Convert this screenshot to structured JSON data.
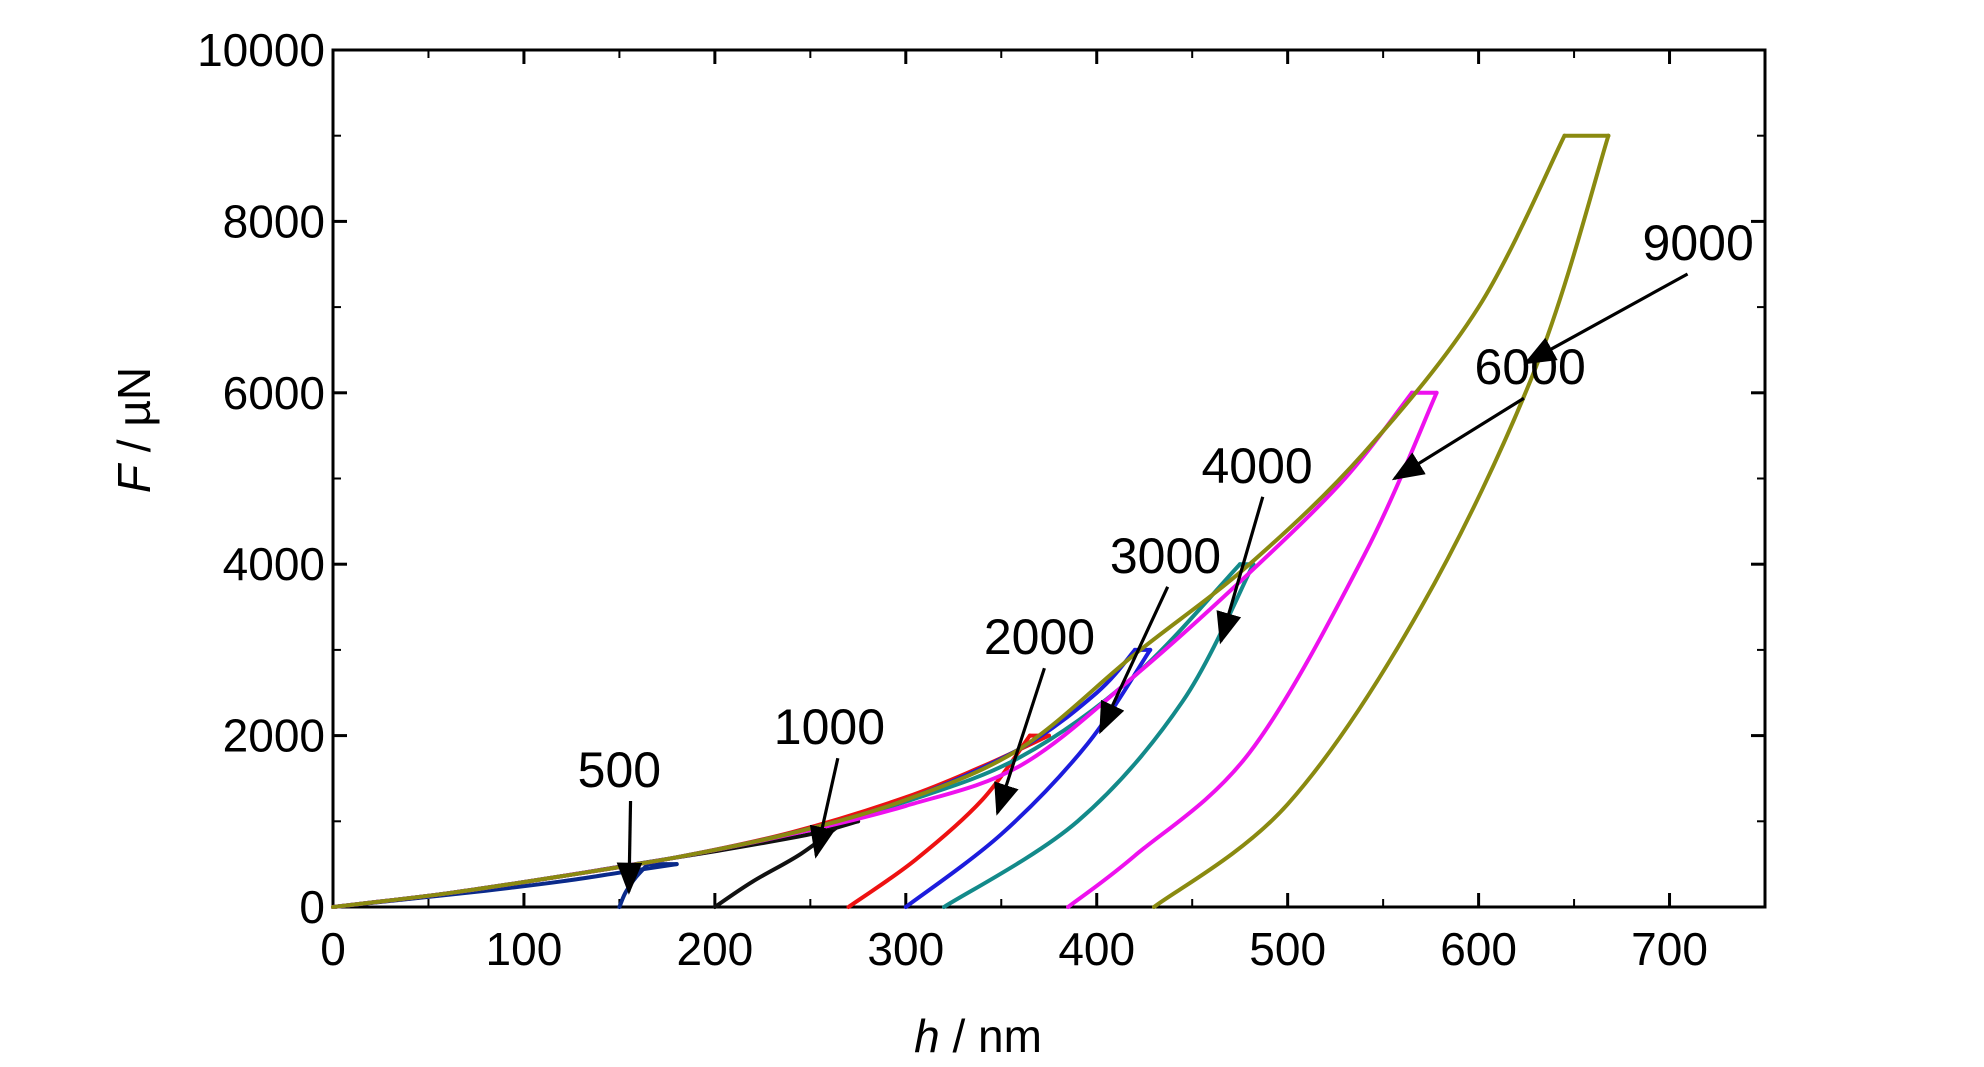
{
  "chart_data": {
    "type": "line",
    "xlabel": {
      "var": "h",
      "unit": " / nm"
    },
    "ylabel": {
      "var": "F",
      "unit": " / µN"
    },
    "xlim": [
      0,
      750
    ],
    "ylim": [
      0,
      10000
    ],
    "x_ticks": [
      0,
      100,
      200,
      300,
      400,
      500,
      600,
      700
    ],
    "y_ticks": [
      0,
      2000,
      4000,
      6000,
      8000,
      10000
    ],
    "grid": false,
    "series": [
      {
        "name": "500",
        "color": "#0a2a8a",
        "loading": [
          [
            0,
            0
          ],
          [
            40,
            95
          ],
          [
            80,
            190
          ],
          [
            120,
            300
          ],
          [
            150,
            400
          ],
          [
            180,
            500
          ]
        ],
        "hold": [
          [
            180,
            500
          ],
          [
            165,
            500
          ]
        ],
        "unloading": [
          [
            165,
            500
          ],
          [
            158,
            330
          ],
          [
            153,
            160
          ],
          [
            150,
            0
          ]
        ],
        "label_xy": [
          150,
          1400
        ],
        "arrow_to": [
          155,
          180
        ]
      },
      {
        "name": "1000",
        "color": "#111111",
        "loading": [
          [
            0,
            0
          ],
          [
            50,
            130
          ],
          [
            100,
            290
          ],
          [
            150,
            470
          ],
          [
            200,
            650
          ],
          [
            250,
            850
          ],
          [
            275,
            1000
          ]
        ],
        "hold": [
          [
            275,
            1000
          ],
          [
            268,
            1000
          ]
        ],
        "unloading": [
          [
            268,
            1000
          ],
          [
            245,
            620
          ],
          [
            220,
            300
          ],
          [
            200,
            0
          ]
        ],
        "label_xy": [
          260,
          1900
        ],
        "arrow_to": [
          253,
          600
        ]
      },
      {
        "name": "2000",
        "color": "#ee1111",
        "loading": [
          [
            0,
            0
          ],
          [
            60,
            160
          ],
          [
            120,
            360
          ],
          [
            180,
            580
          ],
          [
            240,
            870
          ],
          [
            300,
            1280
          ],
          [
            340,
            1640
          ],
          [
            375,
            2000
          ]
        ],
        "hold": [
          [
            375,
            2000
          ],
          [
            365,
            2000
          ]
        ],
        "unloading": [
          [
            365,
            2000
          ],
          [
            340,
            1250
          ],
          [
            305,
            550
          ],
          [
            270,
            0
          ]
        ],
        "label_xy": [
          370,
          2950
        ],
        "arrow_to": [
          348,
          1100
        ]
      },
      {
        "name": "3000",
        "color": "#1c1cdd",
        "loading": [
          [
            0,
            0
          ],
          [
            60,
            160
          ],
          [
            120,
            360
          ],
          [
            180,
            580
          ],
          [
            240,
            860
          ],
          [
            300,
            1250
          ],
          [
            360,
            1850
          ],
          [
            400,
            2500
          ],
          [
            420,
            3000
          ]
        ],
        "hold": [
          [
            420,
            3000
          ],
          [
            428,
            3000
          ]
        ],
        "unloading": [
          [
            428,
            3000
          ],
          [
            395,
            1900
          ],
          [
            350,
            850
          ],
          [
            300,
            0
          ]
        ],
        "label_xy": [
          436,
          3900
        ],
        "arrow_to": [
          402,
          2050
        ]
      },
      {
        "name": "4000",
        "color": "#138a8a",
        "loading": [
          [
            0,
            0
          ],
          [
            60,
            160
          ],
          [
            120,
            360
          ],
          [
            180,
            580
          ],
          [
            240,
            860
          ],
          [
            300,
            1230
          ],
          [
            360,
            1750
          ],
          [
            420,
            2700
          ],
          [
            475,
            4000
          ]
        ],
        "hold": [
          [
            475,
            4000
          ],
          [
            482,
            4000
          ]
        ],
        "unloading": [
          [
            482,
            4000
          ],
          [
            445,
            2400
          ],
          [
            390,
            1000
          ],
          [
            320,
            0
          ]
        ],
        "label_xy": [
          484,
          4950
        ],
        "arrow_to": [
          465,
          3100
        ]
      },
      {
        "name": "6000",
        "color": "#ee11ee",
        "loading": [
          [
            0,
            0
          ],
          [
            60,
            160
          ],
          [
            120,
            360
          ],
          [
            180,
            580
          ],
          [
            240,
            850
          ],
          [
            300,
            1180
          ],
          [
            360,
            1650
          ],
          [
            420,
            2700
          ],
          [
            480,
            3900
          ],
          [
            530,
            5000
          ],
          [
            565,
            6000
          ]
        ],
        "hold": [
          [
            565,
            6000
          ],
          [
            578,
            6000
          ]
        ],
        "unloading": [
          [
            578,
            6000
          ],
          [
            540,
            4100
          ],
          [
            480,
            1800
          ],
          [
            420,
            600
          ],
          [
            385,
            0
          ]
        ],
        "label_xy": [
          627,
          6100
        ],
        "arrow_to": [
          556,
          5000
        ]
      },
      {
        "name": "9000",
        "color": "#8a8a10",
        "loading": [
          [
            0,
            0
          ],
          [
            60,
            160
          ],
          [
            120,
            360
          ],
          [
            180,
            580
          ],
          [
            240,
            860
          ],
          [
            300,
            1250
          ],
          [
            360,
            1850
          ],
          [
            420,
            2950
          ],
          [
            480,
            4000
          ],
          [
            540,
            5300
          ],
          [
            600,
            7000
          ],
          [
            645,
            9000
          ]
        ],
        "hold": [
          [
            645,
            9000
          ],
          [
            668,
            9000
          ]
        ],
        "unloading": [
          [
            668,
            9000
          ],
          [
            630,
            6300
          ],
          [
            570,
            3500
          ],
          [
            500,
            1200
          ],
          [
            430,
            0
          ]
        ],
        "label_xy": [
          715,
          7550
        ],
        "arrow_to": [
          625,
          6350
        ]
      }
    ]
  }
}
